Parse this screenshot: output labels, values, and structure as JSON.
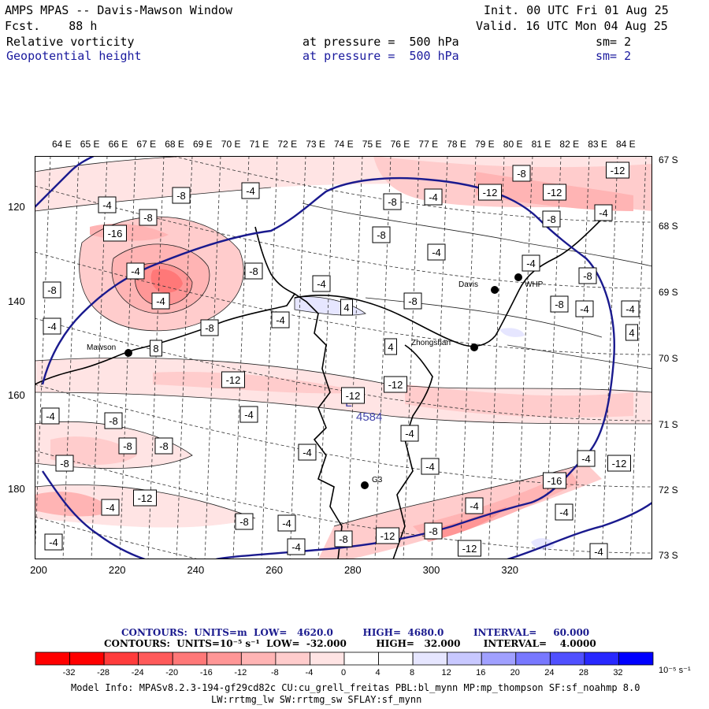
{
  "header": {
    "title": "AMPS MPAS -- Davis-Mawson Window",
    "fcst": "Fcst.    88 h",
    "init": "Init. 00 UTC Fri 01 Aug 25",
    "valid": "Valid. 16 UTC Mon 04 Aug 25",
    "field1": {
      "name": "Relative vorticity",
      "pressure": "at pressure =  500 hPa",
      "sm": "sm= 2"
    },
    "field2": {
      "name": "Geopotential height",
      "pressure": "at pressure =  500 hPa",
      "sm": "sm= 2"
    }
  },
  "map": {
    "lon_labels": [
      "64 E",
      "65 E",
      "66 E",
      "67 E",
      "68 E",
      "69 E",
      "70 E",
      "71 E",
      "72 E",
      "73 E",
      "74 E",
      "75 E",
      "76 E",
      "77 E",
      "78 E",
      "79 E",
      "80 E",
      "81 E",
      "82 E",
      "83 E",
      "84 E"
    ],
    "lat_labels": [
      "67 S",
      "68 S",
      "69 S",
      "70 S",
      "71 S",
      "72 S",
      "73 S"
    ],
    "y_ticks": [
      "120",
      "140",
      "160",
      "180"
    ],
    "x_ticks": [
      "200",
      "220",
      "240",
      "260",
      "280",
      "300",
      "320"
    ],
    "stations": [
      {
        "name": "Mawson"
      },
      {
        "name": "Davis"
      },
      {
        "name": "WHP"
      },
      {
        "name": "Zhongshan"
      },
      {
        "name": "G3"
      }
    ],
    "low_label": "L",
    "low_value": "4584",
    "contour_labels": [
      "-4",
      "-8",
      "-8",
      "-4",
      "-8",
      "-4",
      "-12",
      "-8",
      "-12",
      "-8",
      "-4",
      "-12",
      "-16",
      "-4",
      "-4",
      "-8",
      "-4",
      "-8",
      "8",
      "4",
      "-8",
      "-4",
      "-8",
      "-4",
      "-8",
      "-4",
      "-4",
      "4",
      "-8",
      "-8",
      "-12",
      "-12",
      "-12",
      "-4",
      "-4",
      "-8",
      "-8",
      "-8",
      "-8",
      "-4",
      "-4",
      "-4",
      "-4",
      "-12",
      "-8",
      "-4",
      "-8",
      "-4",
      "-4",
      "-12",
      "-8",
      "-12",
      "-16",
      "-4",
      "-4",
      "-4",
      "-4",
      "4",
      "-4",
      "-12",
      "-4"
    ]
  },
  "footer": {
    "line1": "CONTOURS:  UNITS=m  LOW=   4620.0         HIGH=  4680.0         INTERVAL=     60.000",
    "line2": "CONTOURS:  UNITS=10⁻⁵ s⁻¹  LOW=  -32.000         HIGH=   32.000       INTERVAL=    4.0000",
    "colorbar_ticks": [
      "-32",
      "-28",
      "-24",
      "-20",
      "-16",
      "-12",
      "-8",
      "-4",
      "0",
      "4",
      "8",
      "12",
      "16",
      "20",
      "24",
      "28",
      "32"
    ],
    "colorbar_unit": "10⁻⁵ s⁻¹",
    "colorbar_colors": [
      "#ff0000",
      "#ff3c3c",
      "#ff5a5a",
      "#ff7878",
      "#ff9696",
      "#ffb4b4",
      "#ffcccc",
      "#ffe4e4",
      "#ffffff",
      "#ffffff",
      "#e6e6ff",
      "#c8c8ff",
      "#a0a0ff",
      "#7878ff",
      "#5050ff",
      "#2828ff",
      "#0000ff"
    ],
    "model_info1": "Model Info: MPASv8.2.3-194-gf29cd82c CU:cu_grell_freitas PBL:bl_mynn MP:mp_thompson SF:sf_noahmp 8.0",
    "model_info2": "LW:rrtmg_lw SW:rrtmg_sw SFLAY:sf_mynn"
  }
}
